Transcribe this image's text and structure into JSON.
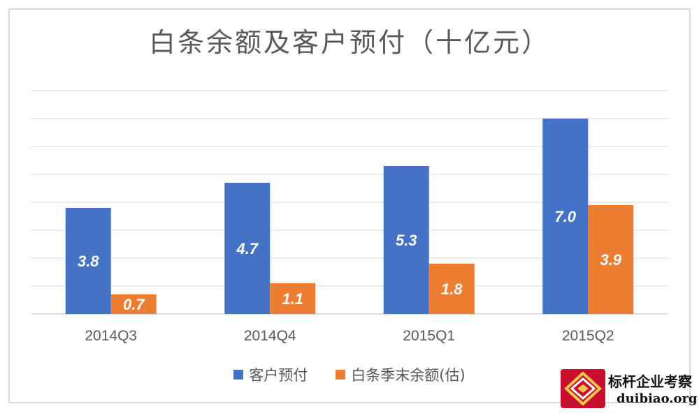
{
  "chart_data": {
    "type": "bar",
    "title": "白条余额及客户预付（十亿元）",
    "xlabel": "",
    "ylabel": "",
    "ylim": [
      0,
      8
    ],
    "grid": true,
    "legend_position": "bottom",
    "categories": [
      "2014Q3",
      "2014Q4",
      "2015Q1",
      "2015Q2"
    ],
    "series": [
      {
        "name": "客户预付",
        "color": "#4472c4",
        "values": [
          3.8,
          4.7,
          5.3,
          7.0
        ],
        "labels": [
          "3.8",
          "4.7",
          "5.3",
          "7.0"
        ]
      },
      {
        "name": "白条季末余额(估)",
        "color": "#ed7d31",
        "values": [
          0.7,
          1.1,
          1.8,
          3.9
        ],
        "labels": [
          "0.7",
          "1.1",
          "1.8",
          "3.9"
        ]
      }
    ]
  },
  "watermark": {
    "name": "标杆企业考察",
    "url": "duibiao.org"
  }
}
